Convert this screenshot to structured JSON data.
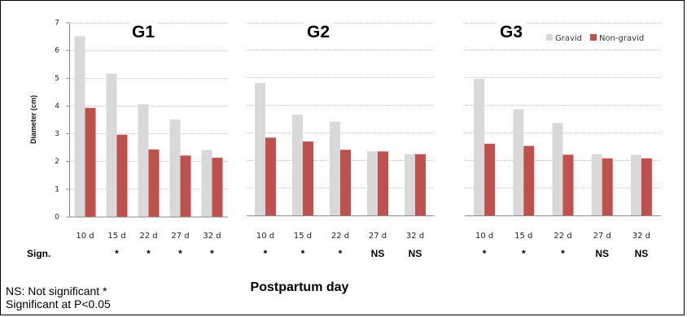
{
  "chart_data": [
    {
      "type": "bar",
      "title": "G1",
      "ylabel": "Diameter (cm)",
      "ylim": [
        0,
        7
      ],
      "yticks": [
        "0",
        "1",
        "2",
        "3",
        "4",
        "5",
        "6",
        "7"
      ],
      "categories": [
        "10 d",
        "15 d",
        "22 d",
        "27 d",
        "32 d"
      ],
      "series": [
        {
          "name": "Gravid",
          "values": [
            6.5,
            5.15,
            4.05,
            3.5,
            2.4
          ]
        },
        {
          "name": "Non-gravid",
          "values": [
            3.92,
            2.95,
            2.42,
            2.2,
            2.12
          ]
        }
      ],
      "significance": [
        "",
        "*",
        "*",
        "*",
        "*"
      ]
    },
    {
      "type": "bar",
      "title": "G2",
      "ylim": [
        0,
        7
      ],
      "categories": [
        "10 d",
        "15 d",
        "22 d",
        "27 d",
        "32 d"
      ],
      "series": [
        {
          "name": "Gravid",
          "values": [
            4.8,
            3.65,
            3.4,
            2.32,
            2.22
          ]
        },
        {
          "name": "Non-gravid",
          "values": [
            2.82,
            2.68,
            2.38,
            2.32,
            2.22
          ]
        }
      ],
      "significance": [
        "*",
        "*",
        "*",
        "NS",
        "NS"
      ]
    },
    {
      "type": "bar",
      "title": "G3",
      "ylim": [
        0,
        7
      ],
      "categories": [
        "10 d",
        "15 d",
        "22 d",
        "27 d",
        "32 d"
      ],
      "series": [
        {
          "name": "Gravid",
          "values": [
            4.95,
            3.85,
            3.35,
            2.22,
            2.2
          ]
        },
        {
          "name": "Non-gravid",
          "values": [
            2.6,
            2.52,
            2.2,
            2.07,
            2.07
          ]
        }
      ],
      "significance": [
        "*",
        "*",
        "*",
        "NS",
        "NS"
      ]
    }
  ],
  "legend": {
    "items": [
      {
        "label": "Gravid",
        "color": "#d9d9d9"
      },
      {
        "label": "Non-gravid",
        "color": "#c0504d"
      }
    ]
  },
  "colors": {
    "gravid": "#d9d9d9",
    "non_gravid": "#c0504d",
    "grid": "#8c8c8c"
  },
  "labels": {
    "sign": "Sign.",
    "xtitle": "Postpartum day",
    "note_line1": "NS: Not significant *",
    "note_line2": "Significant at P<0.05"
  }
}
